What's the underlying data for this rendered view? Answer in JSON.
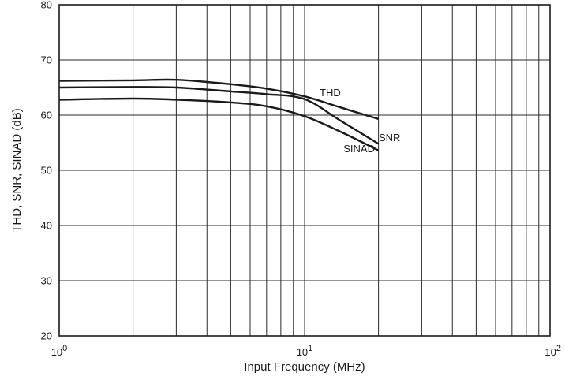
{
  "chart_data": {
    "type": "line",
    "title": "",
    "xlabel": "Input Frequency (MHz)",
    "ylabel": "THD, SNR, SINAD (dB)",
    "x_scale": "log",
    "xlim": [
      1,
      100
    ],
    "ylim": [
      20,
      80
    ],
    "grid": true,
    "legend": "none (series labeled directly on curves)",
    "x_ticks": [
      {
        "base": "10",
        "exp": "0",
        "value": 1
      },
      {
        "base": "10",
        "exp": "1",
        "value": 10
      },
      {
        "base": "10",
        "exp": "2",
        "value": 100
      }
    ],
    "y_ticks": [
      "20",
      "30",
      "40",
      "50",
      "60",
      "70",
      "80"
    ],
    "series": [
      {
        "name": "THD",
        "color": "#1a1a1a",
        "points": [
          [
            1,
            66.2
          ],
          [
            2,
            66.3
          ],
          [
            3,
            66.4
          ],
          [
            5,
            65.6
          ],
          [
            7,
            64.8
          ],
          [
            10,
            63.4
          ],
          [
            14,
            61.4
          ],
          [
            20,
            59.3
          ]
        ]
      },
      {
        "name": "SNR",
        "color": "#1a1a1a",
        "points": [
          [
            1,
            65.0
          ],
          [
            2,
            65.1
          ],
          [
            3,
            65.0
          ],
          [
            5,
            64.3
          ],
          [
            7,
            63.8
          ],
          [
            10,
            62.9
          ],
          [
            14,
            59.0
          ],
          [
            20,
            54.8
          ]
        ]
      },
      {
        "name": "SINAD",
        "color": "#1a1a1a",
        "points": [
          [
            1,
            62.8
          ],
          [
            2,
            63.0
          ],
          [
            3,
            62.8
          ],
          [
            5,
            62.3
          ],
          [
            7,
            61.6
          ],
          [
            10,
            59.8
          ],
          [
            14,
            57.0
          ],
          [
            20,
            53.6
          ]
        ]
      }
    ]
  }
}
